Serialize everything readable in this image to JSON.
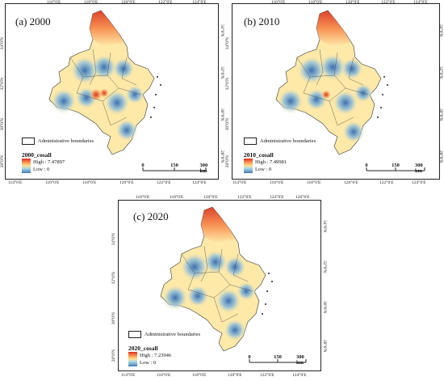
{
  "panels": [
    {
      "title": "(a) 2000",
      "legend_title": "2000_cosall",
      "high_label": "High : 7.47897",
      "low_label": "Low : 0"
    },
    {
      "title": "(b) 2010",
      "legend_title": "2010_cosall",
      "high_label": "High : 7.49981",
      "low_label": "Low : 0"
    },
    {
      "title": "(c) 2020",
      "legend_title": "2020_cosall",
      "high_label": "High : 7.23946",
      "low_label": "Low : 0"
    }
  ],
  "admin_label": "Administrative boundaries",
  "scale": {
    "labels": [
      "0",
      "150",
      "300 km"
    ]
  },
  "lon_ticks": [
    "114°0'E",
    "116°0'E",
    "118°0'E",
    "120°0'E",
    "122°0'E",
    "124°0'E",
    "126°0'E"
  ],
  "lon_ticks_bottom": [
    "114°0'E",
    "116°0'E",
    "118°0'E",
    "120°0'E",
    "122°0'E",
    "124°0'E"
  ],
  "lat_ticks": [
    "34°0'N",
    "32°0'N",
    "30°0'N",
    "28°0'N"
  ],
  "colors": {
    "high": "#d7301f",
    "mid": "#fee090",
    "low": "#4575b4"
  }
}
